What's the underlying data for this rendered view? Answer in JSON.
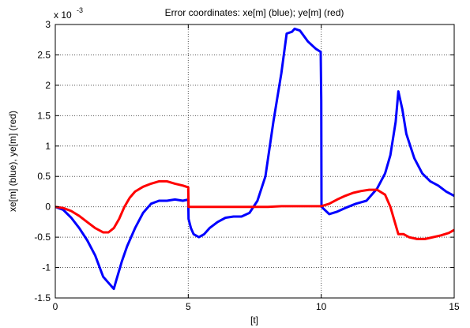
{
  "chart_data": {
    "type": "line",
    "title": "Error coordinates: xe[m] (blue); ye[m] (red)",
    "xlabel": "[t]",
    "ylabel": "xe[m] (blue), ye[m] (red)",
    "y_exponent_label": "x 10",
    "y_exponent_power": "-3",
    "xlim": [
      0,
      15
    ],
    "ylim": [
      -1.5,
      3
    ],
    "x_ticks": [
      0,
      5,
      10,
      15
    ],
    "x_tick_labels": [
      "0",
      "5",
      "10",
      "15"
    ],
    "y_ticks": [
      -1.5,
      -1,
      -0.5,
      0,
      0.5,
      1,
      1.5,
      2,
      2.5,
      3
    ],
    "y_tick_labels": [
      "-1.5",
      "-1",
      "-0.5",
      "0",
      "0.5",
      "1",
      "1.5",
      "2",
      "2.5",
      "3"
    ],
    "grid": "dotted",
    "series": [
      {
        "color": "#0000ff",
        "x": [
          0,
          0.3,
          0.6,
          0.9,
          1.2,
          1.5,
          1.8,
          2.0,
          2.2,
          2.3,
          2.5,
          2.7,
          3.0,
          3.3,
          3.6,
          3.9,
          4.2,
          4.5,
          4.8,
          5.0,
          5.01,
          5.1,
          5.2,
          5.4,
          5.6,
          5.8,
          6.1,
          6.4,
          6.7,
          7.0,
          7.3,
          7.6,
          7.9,
          8.2,
          8.5,
          8.7,
          8.9,
          9.0,
          9.2,
          9.5,
          9.8,
          9.98,
          10.0,
          10.01,
          10.3,
          10.6,
          10.9,
          11.3,
          11.7,
          12.1,
          12.4,
          12.6,
          12.8,
          12.9,
          13.05,
          13.2,
          13.5,
          13.8,
          14.1,
          14.4,
          14.7,
          15.0
        ],
        "y": [
          0,
          -0.05,
          -0.18,
          -0.35,
          -0.55,
          -0.8,
          -1.15,
          -1.25,
          -1.35,
          -1.2,
          -0.9,
          -0.65,
          -0.35,
          -0.1,
          0.05,
          0.1,
          0.1,
          0.12,
          0.1,
          0.12,
          -0.2,
          -0.35,
          -0.45,
          -0.5,
          -0.45,
          -0.35,
          -0.25,
          -0.18,
          -0.16,
          -0.16,
          -0.1,
          0.1,
          0.5,
          1.4,
          2.2,
          2.85,
          2.88,
          2.93,
          2.9,
          2.72,
          2.6,
          2.55,
          1.75,
          0.0,
          -0.12,
          -0.08,
          -0.02,
          0.05,
          0.1,
          0.3,
          0.55,
          0.85,
          1.4,
          1.9,
          1.6,
          1.2,
          0.8,
          0.55,
          0.42,
          0.35,
          0.25,
          0.18
        ]
      },
      {
        "color": "#ff0000",
        "x": [
          0,
          0.3,
          0.6,
          0.9,
          1.2,
          1.5,
          1.8,
          2.0,
          2.2,
          2.4,
          2.6,
          2.8,
          3.0,
          3.3,
          3.6,
          3.9,
          4.2,
          4.5,
          4.8,
          5.0,
          5.01,
          5.5,
          6.0,
          6.5,
          7.0,
          7.5,
          8.0,
          8.5,
          9.0,
          9.5,
          10.0,
          10.3,
          10.6,
          10.9,
          11.2,
          11.5,
          11.8,
          12.1,
          12.4,
          12.6,
          12.9,
          13.1,
          13.3,
          13.6,
          13.9,
          14.2,
          14.5,
          14.8,
          15.0
        ],
        "y": [
          0,
          -0.02,
          -0.07,
          -0.15,
          -0.25,
          -0.35,
          -0.42,
          -0.42,
          -0.35,
          -0.2,
          0.0,
          0.15,
          0.25,
          0.33,
          0.38,
          0.42,
          0.42,
          0.38,
          0.35,
          0.32,
          0.0,
          0.0,
          0.0,
          0.0,
          0.0,
          0.0,
          0.0,
          0.01,
          0.01,
          0.01,
          0.01,
          0.05,
          0.12,
          0.18,
          0.23,
          0.26,
          0.28,
          0.28,
          0.2,
          0.0,
          -0.45,
          -0.45,
          -0.5,
          -0.53,
          -0.53,
          -0.5,
          -0.47,
          -0.43,
          -0.38
        ]
      }
    ]
  }
}
